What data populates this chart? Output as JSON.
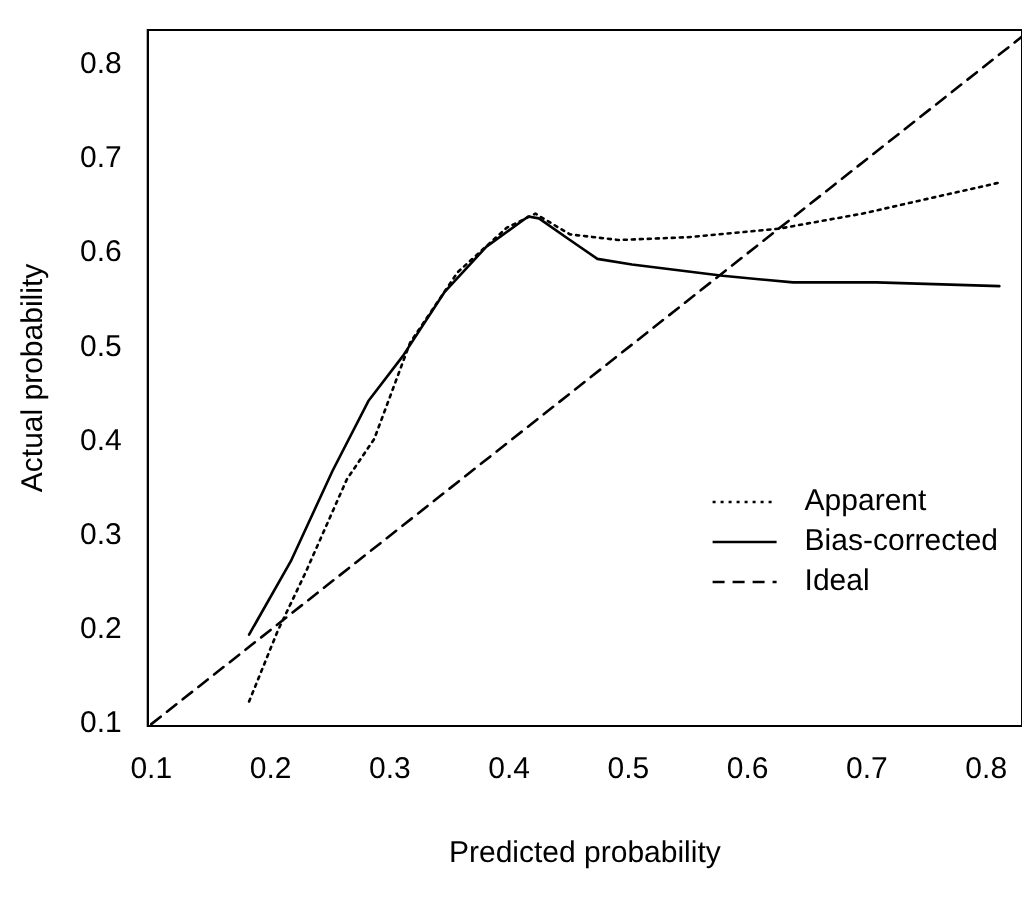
{
  "chart_data": {
    "type": "line",
    "xlabel": "Predicted probability",
    "ylabel": "Actual probability",
    "xlim": [
      0.097,
      0.83
    ],
    "ylim": [
      0.098,
      0.837
    ],
    "xticks": [
      0.1,
      0.2,
      0.3,
      0.4,
      0.5,
      0.6,
      0.7,
      0.8
    ],
    "yticks": [
      0.1,
      0.2,
      0.3,
      0.4,
      0.5,
      0.6,
      0.7,
      0.8
    ],
    "grid": false,
    "legend": "bottom right",
    "marker": "none",
    "series": [
      {
        "name": "Apparent",
        "color": "#000000",
        "line_style": "dotted",
        "x": [
          0.182,
          0.206,
          0.229,
          0.264,
          0.287,
          0.317,
          0.357,
          0.398,
          0.422,
          0.451,
          0.492,
          0.55,
          0.626,
          0.696,
          0.811
        ],
        "values": [
          0.124,
          0.199,
          0.26,
          0.36,
          0.403,
          0.505,
          0.58,
          0.627,
          0.642,
          0.62,
          0.614,
          0.617,
          0.626,
          0.642,
          0.675
        ]
      },
      {
        "name": "Bias-corrected",
        "color": "#000000",
        "line_style": "solid",
        "x": [
          0.182,
          0.217,
          0.252,
          0.282,
          0.311,
          0.346,
          0.381,
          0.416,
          0.425,
          0.451,
          0.474,
          0.503,
          0.579,
          0.638,
          0.708,
          0.811
        ],
        "values": [
          0.195,
          0.273,
          0.369,
          0.443,
          0.491,
          0.559,
          0.607,
          0.639,
          0.637,
          0.614,
          0.594,
          0.588,
          0.576,
          0.569,
          0.569,
          0.565
        ]
      },
      {
        "name": "Ideal",
        "color": "#000000",
        "line_style": "dashed",
        "x": [
          0.1,
          0.83
        ],
        "values": [
          0.1,
          0.83
        ]
      }
    ]
  }
}
